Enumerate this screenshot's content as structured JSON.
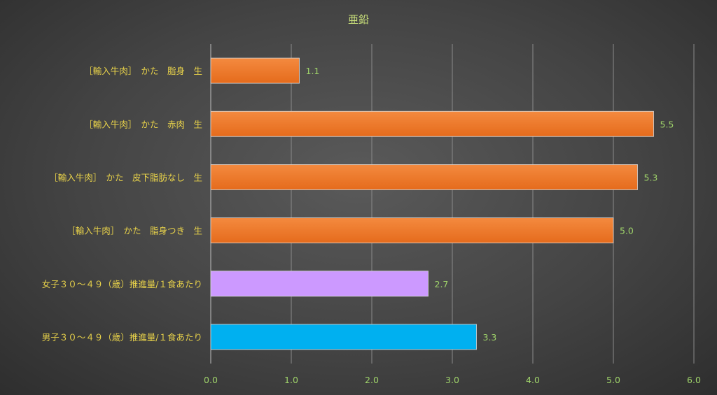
{
  "chart_data": {
    "type": "bar",
    "orientation": "horizontal",
    "title": "亜鉛",
    "categories": [
      "［輸入牛肉］　かた　脂身　生",
      "［輸入牛肉］　かた　赤肉　生",
      "［輸入牛肉］　かた　皮下脂肪なし　生",
      "［輸入牛肉］　かた　脂身つき　生",
      "女子３０～４９（歳）推進量/１食あたり",
      "男子３０～４９（歳）推進量/１食あたり"
    ],
    "values": [
      1.1,
      5.5,
      5.3,
      5.0,
      2.7,
      3.3
    ],
    "value_labels": [
      "1.1",
      "5.5",
      "5.3",
      "5.0",
      "2.7",
      "3.3"
    ],
    "bar_colors": [
      "#ef7b2e",
      "#ef7b2e",
      "#ef7b2e",
      "#ef7b2e",
      "#cc99ff",
      "#00b0f0"
    ],
    "xlim": [
      0,
      6
    ],
    "ticks": [
      "0.0",
      "1.0",
      "2.0",
      "3.0",
      "4.0",
      "5.0",
      "6.0"
    ],
    "xlabel": "",
    "ylabel": "",
    "grid": true,
    "legend": "none"
  }
}
